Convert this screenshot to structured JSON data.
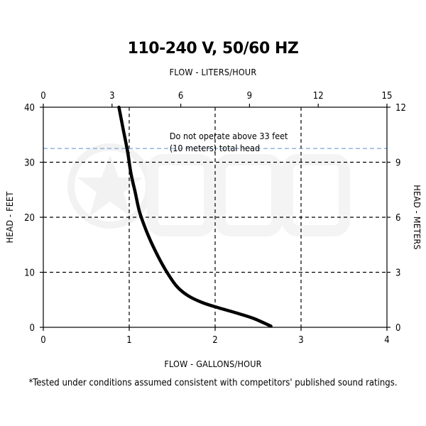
{
  "chart_data": {
    "type": "line",
    "title": "110-240 V, 50/60 HZ",
    "x_bottom": {
      "label": "FLOW - GALLONS/HOUR",
      "ticks": [
        0,
        1,
        2,
        3,
        4
      ],
      "lim": [
        0,
        4
      ]
    },
    "x_top": {
      "label": "FLOW - LITERS/HOUR",
      "ticks": [
        0,
        3,
        6,
        9,
        12,
        15
      ],
      "lim": [
        0,
        15
      ]
    },
    "y_left": {
      "label": "HEAD - FEET",
      "ticks": [
        0,
        10,
        20,
        30,
        40
      ],
      "lim": [
        0,
        40
      ]
    },
    "y_right": {
      "label": "HEAD - METERS",
      "ticks": [
        0,
        3,
        6,
        9,
        12
      ],
      "lim": [
        0,
        12
      ]
    },
    "grid": {
      "x": [
        1,
        2,
        3
      ],
      "y": [
        10,
        20,
        30
      ],
      "style": "dashed"
    },
    "series": [
      {
        "x": [
          0.88,
          0.93,
          0.98,
          1.02,
          1.07,
          1.12,
          1.2,
          1.3,
          1.42,
          1.55,
          1.68,
          1.85,
          2.05,
          2.25,
          2.45,
          2.65
        ],
        "y": [
          40,
          36,
          32,
          28,
          24.5,
          21,
          17.5,
          14,
          10.5,
          7.5,
          5.8,
          4.5,
          3.5,
          2.6,
          1.6,
          0.2
        ]
      }
    ],
    "annotations": {
      "limit_line": {
        "y": 32.5,
        "color": "#7aa6d8"
      },
      "limit_text": [
        "Do not operate above 33 feet",
        "(10 meters) total head"
      ],
      "limit_text_pos": {
        "x": 1.47,
        "y": 33.4
      }
    },
    "footnote": "*Tested under conditions assumed consistent with competitors' published sound ratings."
  }
}
